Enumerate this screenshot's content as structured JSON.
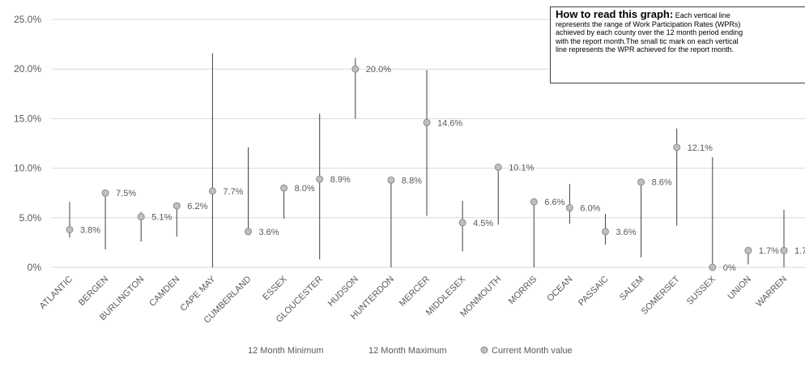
{
  "chart_data": {
    "type": "scatter",
    "categories": [
      "ATLANTIC",
      "BERGEN",
      "BURLINGTON",
      "CAMDEN",
      "CAPE MAY",
      "CUMBERLAND",
      "ESSEX",
      "GLOUCESTER",
      "HUDSON",
      "HUNTERDON",
      "MERCER",
      "MIDDLESEX",
      "MONMOUTH",
      "MORRIS",
      "OCEAN",
      "PASSAIC",
      "SALEM",
      "SOMERSET",
      "SUSSEX",
      "UNION",
      "WARREN"
    ],
    "series": [
      {
        "name": "12 Month Minimum",
        "values": [
          3.0,
          1.8,
          2.6,
          3.1,
          0.0,
          3.4,
          4.9,
          0.8,
          15.0,
          0.0,
          5.2,
          1.6,
          4.3,
          0.0,
          4.4,
          2.3,
          1.0,
          4.2,
          0.0,
          0.3,
          0.0
        ]
      },
      {
        "name": "12 Month Maximum",
        "values": [
          6.6,
          7.8,
          5.6,
          6.4,
          21.6,
          12.1,
          8.2,
          15.5,
          21.1,
          9.0,
          19.9,
          6.7,
          10.3,
          6.8,
          8.4,
          5.4,
          8.8,
          14.0,
          11.1,
          2.0,
          5.8
        ]
      },
      {
        "name": "Current Month value",
        "values": [
          3.8,
          7.5,
          5.1,
          6.2,
          7.7,
          3.6,
          8.0,
          8.9,
          20.0,
          8.8,
          14.6,
          4.5,
          10.1,
          6.6,
          6.0,
          3.6,
          8.6,
          12.1,
          0.0,
          1.7,
          1.7
        ]
      }
    ],
    "data_labels": [
      "3.8%",
      "7.5%",
      "5.1%",
      "6.2%",
      "7.7%",
      "3.6%",
      "8.0%",
      "8.9%",
      "20.0%",
      "8.8%",
      "14.6%",
      "4.5%",
      "10.1%",
      "6.6%",
      "6.0%",
      "3.6%",
      "8.6%",
      "12.1%",
      "0%",
      "1.7%",
      "1.7"
    ],
    "y_ticks": [
      "0%",
      "5.0%",
      "10.0%",
      "15.0%",
      "20.0%",
      "25.0%"
    ],
    "ylim": [
      0,
      25
    ],
    "grid": "horizontal",
    "legend_position": "bottom",
    "legend": [
      "12 Month Minimum",
      "12 Month Maximum",
      "Current Month value"
    ],
    "title": "",
    "xlabel": "",
    "ylabel": "",
    "colors": {
      "line": "#404040",
      "marker_fill": "#bfbfbf",
      "marker_stroke": "#8c8c8c",
      "grid": "#d9d9d9",
      "text": "#595959"
    }
  },
  "note": {
    "title": "How to read this graph:",
    "lines": [
      "Each vertical line",
      "represents the range of Work Participation Rates (WPRs)",
      "achieved by each county over the 12 month period ending",
      "with the report month.The small tic mark on each vertical",
      "line represents the WPR achieved for the report month."
    ]
  }
}
